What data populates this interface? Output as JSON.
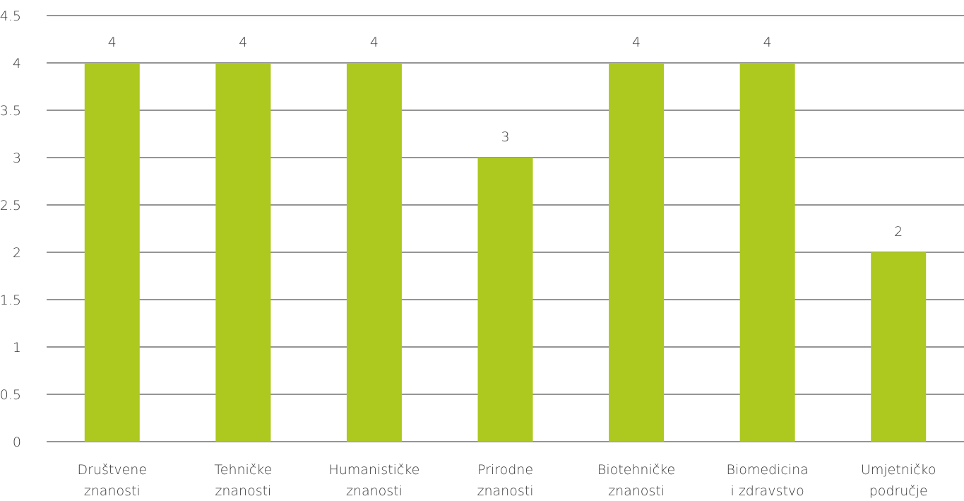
{
  "chart_data": {
    "type": "bar",
    "categories": [
      [
        "Društvene",
        "znanosti"
      ],
      [
        "Tehničke",
        "znanosti"
      ],
      [
        "Humanističke",
        "znanosti"
      ],
      [
        "Prirodne",
        "znanosti"
      ],
      [
        "Biotehničke",
        "znanosti"
      ],
      [
        "Biomedicina",
        "i zdravstvo"
      ],
      [
        "Umjetničko",
        "područje"
      ]
    ],
    "values": [
      4,
      4,
      4,
      3,
      4,
      4,
      2
    ],
    "data_labels": [
      "4",
      "4",
      "4",
      "3",
      "4",
      "4",
      "2"
    ],
    "yticks": [
      "0",
      "0.5",
      "1",
      "1.5",
      "2",
      "2.5",
      "3",
      "3.5",
      "4",
      "4.5"
    ],
    "ylim": [
      0,
      4.5
    ],
    "grid": true,
    "legend": "none",
    "bar_color": "#adc81e",
    "grid_color": "#2b2b2b"
  }
}
